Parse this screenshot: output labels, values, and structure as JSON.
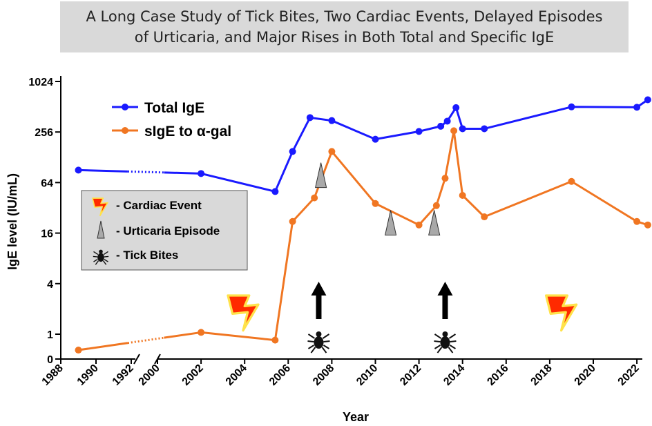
{
  "title": {
    "line1": "A Long Case Study of  Tick Bites, Two Cardiac Events, Delayed Episodes",
    "line2": "of Urticaria, and Major Rises in Both Total and Specific IgE"
  },
  "chart_data": {
    "type": "line",
    "title": "A Long Case Study of  Tick Bites, Two Cardiac Events, Delayed Episodes of Urticaria, and Major Rises in Both Total and Specific IgE",
    "xlabel": "Year",
    "ylabel": "IgE level (IU/mL)",
    "y_scale": "log2",
    "ylim": [
      0.5,
      1024
    ],
    "y_ticks": [
      {
        "value": 1024,
        "label": "1024"
      },
      {
        "value": 256,
        "label": "256"
      },
      {
        "value": 64,
        "label": "64"
      },
      {
        "value": 16,
        "label": "16"
      },
      {
        "value": 4,
        "label": "4"
      },
      {
        "value": 1,
        "label": "1"
      },
      {
        "value": 0.5,
        "label": "0"
      }
    ],
    "x_axis_break": {
      "from": 1992,
      "to": 2000
    },
    "x_ticks": [
      {
        "value": 1988,
        "label": "1988"
      },
      {
        "value": 1990,
        "label": "1990"
      },
      {
        "value": 1992,
        "label": "1992"
      },
      {
        "value": 2000,
        "label": "2000"
      },
      {
        "value": 2002,
        "label": "2002"
      },
      {
        "value": 2004,
        "label": "2004"
      },
      {
        "value": 2006,
        "label": "2006"
      },
      {
        "value": 2008,
        "label": "2008"
      },
      {
        "value": 2010,
        "label": "2010"
      },
      {
        "value": 2012,
        "label": "2012"
      },
      {
        "value": 2014,
        "label": "2014"
      },
      {
        "value": 2016,
        "label": "2016"
      },
      {
        "value": 2018,
        "label": "2018"
      },
      {
        "value": 2020,
        "label": "2020"
      },
      {
        "value": 2022,
        "label": "2022"
      }
    ],
    "series": [
      {
        "name": "Total IgE",
        "color": "#1a1aff",
        "points": [
          [
            1989,
            90
          ],
          [
            2002,
            82
          ],
          [
            2005.4,
            50
          ],
          [
            2006.2,
            150
          ],
          [
            2007,
            380
          ],
          [
            2008,
            350
          ],
          [
            2010,
            210
          ],
          [
            2012,
            260
          ],
          [
            2013,
            300
          ],
          [
            2013.3,
            345
          ],
          [
            2013.7,
            500
          ],
          [
            2014,
            280
          ],
          [
            2015,
            280
          ],
          [
            2019,
            510
          ],
          [
            2022,
            505
          ],
          [
            2022.5,
            620
          ]
        ],
        "dotted_segments": [
          [
            1989,
            2002
          ]
        ]
      },
      {
        "name": "sIgE to α-gal",
        "color": "#f07622",
        "points": [
          [
            1989,
            0.68
          ],
          [
            2002,
            1.05
          ],
          [
            2005.4,
            0.88
          ],
          [
            2006.2,
            22
          ],
          [
            2007.2,
            42
          ],
          [
            2008,
            150
          ],
          [
            2010,
            36
          ],
          [
            2012,
            20
          ],
          [
            2012.8,
            34
          ],
          [
            2013.2,
            72
          ],
          [
            2013.6,
            265
          ],
          [
            2014,
            45
          ],
          [
            2015,
            25
          ],
          [
            2019,
            66
          ],
          [
            2022,
            22
          ],
          [
            2022.5,
            20
          ]
        ],
        "dotted_segments": [
          [
            1989,
            2002
          ]
        ]
      }
    ],
    "annotations": {
      "cardiac_events": [
        2004.0,
        2018.6
      ],
      "urticaria_episodes": [
        {
          "x": 2007.5,
          "y": 70
        },
        {
          "x": 2010.7,
          "y": 19
        },
        {
          "x": 2012.7,
          "y": 19
        }
      ],
      "tick_bites": [
        2007.4,
        2013.2
      ]
    }
  },
  "legend": {
    "total_ige": "Total IgE",
    "sige": "sIgE to α-gal"
  },
  "symbol_key": {
    "cardiac": "- Cardiac Event",
    "urticaria": "- Urticaria Episode",
    "tick": "- Tick Bites"
  },
  "colors": {
    "total_ige": "#1a1aff",
    "sige": "#f07622",
    "key_bg": "#d9d9d9",
    "title_bg": "#d9d9d9"
  }
}
